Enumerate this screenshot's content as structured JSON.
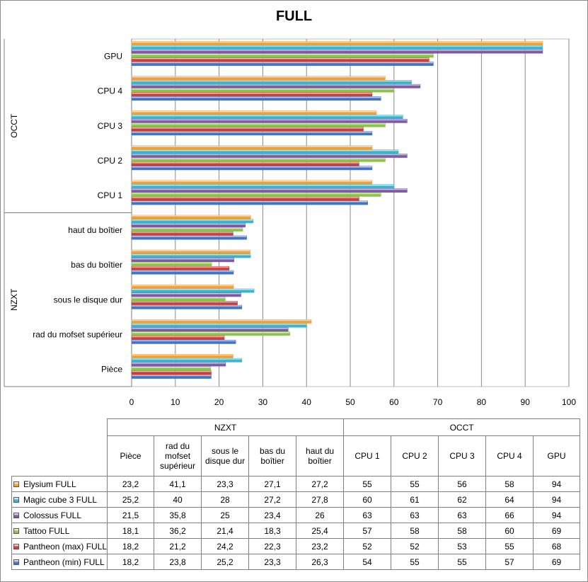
{
  "colors": {
    "Elysium FULL": "#f0a036",
    "Magic cube 3 FULL": "#3ab3cc",
    "Colossus FULL": "#7c5aa6",
    "Tattoo FULL": "#8dc34a",
    "Pantheon (max) FULL": "#cc3e3b",
    "Pantheon (min)  FULL": "#4472c4"
  },
  "chart_data": {
    "type": "bar",
    "orientation": "horizontal",
    "title": "FULL",
    "groups": [
      {
        "name": "NZXT",
        "categories": [
          "Pièce",
          "rad du mofset supérieur",
          "sous le disque dur",
          "bas du boîtier",
          "haut du boîtier"
        ]
      },
      {
        "name": "OCCT",
        "categories": [
          "CPU 1",
          "CPU 2",
          "CPU 3",
          "CPU 4",
          "GPU"
        ]
      }
    ],
    "categories": [
      "Pièce",
      "rad du mofset supérieur",
      "sous le disque dur",
      "bas du boîtier",
      "haut du boîtier",
      "CPU 1",
      "CPU 2",
      "CPU 3",
      "CPU 4",
      "GPU"
    ],
    "table_headers": [
      "Pièce",
      "rad du mofset supérieur",
      "sous le disque dur",
      "bas du boîtier",
      "haut du boîtier",
      "CPU 1",
      "CPU 2",
      "CPU 3",
      "CPU 4",
      "GPU"
    ],
    "series": [
      {
        "name": "Elysium FULL",
        "values": [
          23.2,
          41.1,
          23.3,
          27.1,
          27.2,
          55,
          55,
          56,
          58,
          94
        ],
        "display": [
          "23,2",
          "41,1",
          "23,3",
          "27,1",
          "27,2",
          "55",
          "55",
          "56",
          "58",
          "94"
        ]
      },
      {
        "name": "Magic cube 3 FULL",
        "values": [
          25.2,
          40,
          28,
          27.2,
          27.8,
          60,
          61,
          62,
          64,
          94
        ],
        "display": [
          "25,2",
          "40",
          "28",
          "27,2",
          "27,8",
          "60",
          "61",
          "62",
          "64",
          "94"
        ]
      },
      {
        "name": "Colossus FULL",
        "values": [
          21.5,
          35.8,
          25,
          23.4,
          26,
          63,
          63,
          63,
          66,
          94
        ],
        "display": [
          "21,5",
          "35,8",
          "25",
          "23,4",
          "26",
          "63",
          "63",
          "63",
          "66",
          "94"
        ]
      },
      {
        "name": "Tattoo FULL",
        "values": [
          18.1,
          36.2,
          21.4,
          18.3,
          25.4,
          57,
          58,
          58,
          60,
          69
        ],
        "display": [
          "18,1",
          "36,2",
          "21,4",
          "18,3",
          "25,4",
          "57",
          "58",
          "58",
          "60",
          "69"
        ]
      },
      {
        "name": "Pantheon (max) FULL",
        "values": [
          18.2,
          21.2,
          24.2,
          22.3,
          23.2,
          52,
          52,
          53,
          55,
          68
        ],
        "display": [
          "18,2",
          "21,2",
          "24,2",
          "22,3",
          "23,2",
          "52",
          "52",
          "53",
          "55",
          "68"
        ]
      },
      {
        "name": "Pantheon (min)  FULL",
        "values": [
          18.2,
          23.8,
          25.2,
          23.3,
          26.3,
          54,
          55,
          55,
          57,
          69
        ],
        "display": [
          "18,2",
          "23,8",
          "25,2",
          "23,3",
          "26,3",
          "54",
          "55",
          "55",
          "57",
          "69"
        ]
      }
    ],
    "x_ticks": [
      0,
      10,
      20,
      30,
      40,
      50,
      60,
      70,
      80,
      90,
      100
    ],
    "xlim": [
      0,
      100
    ],
    "grid": true,
    "legend": "data-table-bottom"
  }
}
